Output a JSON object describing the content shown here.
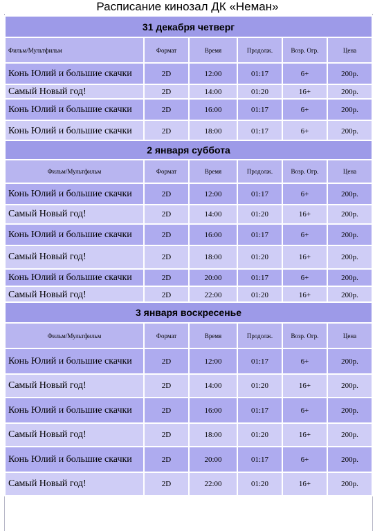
{
  "page_title": "Расписание кинозал ДК «Неман»",
  "headers": [
    "Фильм/Мультфильм",
    "Формат",
    "Время",
    "Продолж.",
    "Возр. Огр.",
    "Цена"
  ],
  "days": [
    {
      "label": "31 декабря четверг",
      "rows": [
        [
          "Конь Юлий и большие скачки",
          "2D",
          "12:00",
          "01:17",
          "6+",
          "200р."
        ],
        [
          "Самый Новый год!",
          "2D",
          "14:00",
          "01:20",
          "16+",
          "200р."
        ],
        [
          "Конь Юлий и большие скачки",
          "2D",
          "16:00",
          "01:17",
          "6+",
          "200р."
        ],
        [
          "Конь Юлий и большие скачки",
          "2D",
          "18:00",
          "01:17",
          "6+",
          "200р."
        ]
      ]
    },
    {
      "label": "2 января суббота",
      "rows": [
        [
          "Конь Юлий и большие скачки",
          "2D",
          "12:00",
          "01:17",
          "6+",
          "200р."
        ],
        [
          "Самый Новый год!",
          "2D",
          "14:00",
          "01:20",
          "16+",
          "200р."
        ],
        [
          "Конь Юлий и большие скачки",
          "2D",
          "16:00",
          "01:17",
          "6+",
          "200р."
        ],
        [
          "Самый Новый год!",
          "2D",
          "18:00",
          "01:20",
          "16+",
          "200р."
        ],
        [
          "Конь Юлий и большие скачки",
          "2D",
          "20:00",
          "01:17",
          "6+",
          "200р."
        ],
        [
          "Самый Новый год!",
          "2D",
          "22:00",
          "01:20",
          "16+",
          "200р."
        ]
      ]
    },
    {
      "label": "3 января воскресенье",
      "rows": [
        [
          "Конь Юлий и большие скачки",
          "2D",
          "12:00",
          "01:17",
          "6+",
          "200р."
        ],
        [
          "Самый Новый год!",
          "2D",
          "14:00",
          "01:20",
          "16+",
          "200р."
        ],
        [
          "Конь Юлий и большие скачки",
          "2D",
          "16:00",
          "01:17",
          "6+",
          "200р."
        ],
        [
          "Самый Новый год!",
          "2D",
          "18:00",
          "01:20",
          "16+",
          "200р."
        ],
        [
          "Конь Юлий и большие скачки",
          "2D",
          "20:00",
          "01:17",
          "6+",
          "200р."
        ],
        [
          "Самый Новый год!",
          "2D",
          "22:00",
          "01:20",
          "16+",
          "200р."
        ]
      ]
    }
  ]
}
